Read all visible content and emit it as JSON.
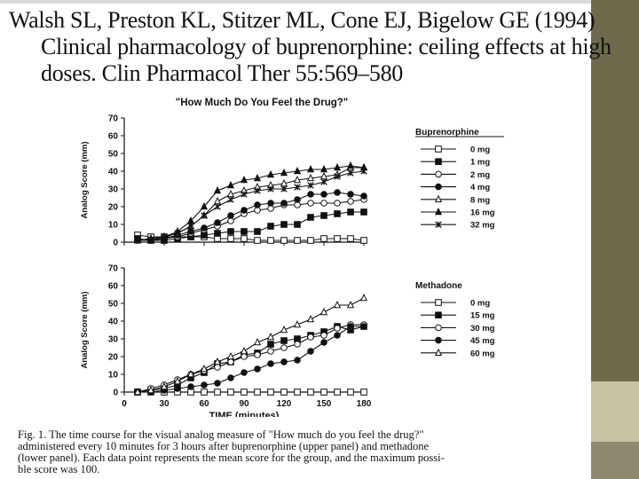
{
  "citation": {
    "line1": "Walsh SL, Preston KL, Stitzer ML, Cone EJ, Bigelow GE (1994)",
    "line2": "Clinical pharmacology of buprenorphine: ceiling effects at high",
    "line3": "doses. Clin Pharmacol Ther 55:569–580"
  },
  "caption": {
    "line1": "Fig. 1. The time course for the visual analog measure of \"How much do you feel the drug?\"",
    "line2": "administered every 10 minutes for 3 hours after buprenorphine (upper panel) and methadone",
    "line3": "(lower panel). Each data point represents the mean score for the group, and the maximum possi-",
    "line4": "ble score was 100."
  },
  "colors": {
    "side_bar": "#6f6a4b",
    "side_bar_accent": "#c6c3a2"
  },
  "chart_data": [
    {
      "type": "line",
      "panel": "upper",
      "title": "\"How Much Do You Feel the Drug?\"",
      "xlabel": "",
      "ylabel": "Analog Score (mm)",
      "ylim": [
        0,
        70
      ],
      "yticks": [
        "0",
        "10",
        "20",
        "30",
        "40",
        "50",
        "60",
        "70"
      ],
      "xlim": [
        0,
        180
      ],
      "legend_title": "Buprenorphine",
      "legend_position": "right",
      "x": [
        10,
        20,
        30,
        40,
        50,
        60,
        70,
        80,
        90,
        100,
        110,
        120,
        130,
        140,
        150,
        160,
        170,
        180
      ],
      "series": [
        {
          "name": "0 mg",
          "marker": "open-square",
          "values": [
            4,
            3,
            3,
            3,
            3,
            3,
            2,
            2,
            2,
            1,
            1,
            1,
            1,
            1,
            2,
            2,
            2,
            1
          ]
        },
        {
          "name": "1 mg",
          "marker": "filled-square",
          "values": [
            2,
            1,
            1,
            2,
            3,
            4,
            5,
            6,
            6,
            6,
            9,
            10,
            10,
            14,
            15,
            16,
            17,
            17
          ]
        },
        {
          "name": "2 mg",
          "marker": "open-circle",
          "values": [
            1,
            1,
            2,
            3,
            5,
            7,
            9,
            12,
            16,
            18,
            19,
            21,
            21,
            22,
            22,
            22,
            23,
            24
          ]
        },
        {
          "name": "4 mg",
          "marker": "filled-circle",
          "values": [
            1,
            1,
            2,
            4,
            6,
            8,
            11,
            15,
            18,
            21,
            22,
            22,
            24,
            27,
            27,
            28,
            27,
            26
          ]
        },
        {
          "name": "8 mg",
          "marker": "open-triangle",
          "values": [
            1,
            2,
            3,
            5,
            9,
            15,
            23,
            27,
            29,
            31,
            32,
            33,
            35,
            36,
            37,
            38,
            42,
            42
          ]
        },
        {
          "name": "16 mg",
          "marker": "filled-triangle",
          "values": [
            1,
            2,
            3,
            6,
            12,
            20,
            29,
            32,
            35,
            36,
            38,
            39,
            40,
            41,
            41,
            42,
            43,
            42
          ]
        },
        {
          "name": "32 mg",
          "marker": "asterisk",
          "values": [
            1,
            1,
            3,
            5,
            9,
            15,
            20,
            24,
            27,
            29,
            30,
            30,
            31,
            32,
            34,
            37,
            39,
            40
          ]
        }
      ]
    },
    {
      "type": "line",
      "panel": "lower",
      "title": "",
      "xlabel": "TIME (minutes)",
      "ylabel": "Analog Score (mm)",
      "ylim": [
        0,
        70
      ],
      "yticks": [
        "0",
        "10",
        "20",
        "30",
        "40",
        "50",
        "60",
        "70"
      ],
      "xlim": [
        0,
        180
      ],
      "xticks": [
        "0",
        "30",
        "60",
        "90",
        "120",
        "150",
        "180"
      ],
      "legend_title": "Methadone",
      "legend_position": "right",
      "x": [
        10,
        20,
        30,
        40,
        50,
        60,
        70,
        80,
        90,
        100,
        110,
        120,
        130,
        140,
        150,
        160,
        170,
        180
      ],
      "series": [
        {
          "name": "0 mg",
          "marker": "open-square",
          "values": [
            0,
            0,
            0,
            0,
            0,
            0,
            0,
            0,
            0,
            0,
            0,
            0,
            0,
            0,
            0,
            0,
            0,
            0
          ]
        },
        {
          "name": "15 mg",
          "marker": "filled-square",
          "values": [
            0,
            1,
            2,
            4,
            8,
            11,
            16,
            17,
            21,
            22,
            27,
            29,
            30,
            32,
            34,
            37,
            35,
            37
          ]
        },
        {
          "name": "30 mg",
          "marker": "open-circle",
          "values": [
            0,
            2,
            4,
            7,
            10,
            12,
            14,
            17,
            20,
            21,
            23,
            25,
            27,
            31,
            32,
            36,
            38,
            38
          ]
        },
        {
          "name": "45 mg",
          "marker": "filled-circle",
          "values": [
            0,
            0,
            1,
            2,
            3,
            4,
            5,
            8,
            11,
            13,
            16,
            17,
            18,
            23,
            28,
            32,
            37,
            37
          ]
        },
        {
          "name": "60 mg",
          "marker": "open-triangle",
          "values": [
            0,
            1,
            3,
            6,
            10,
            13,
            17,
            20,
            23,
            28,
            31,
            35,
            38,
            41,
            45,
            49,
            49,
            53
          ]
        }
      ]
    }
  ]
}
